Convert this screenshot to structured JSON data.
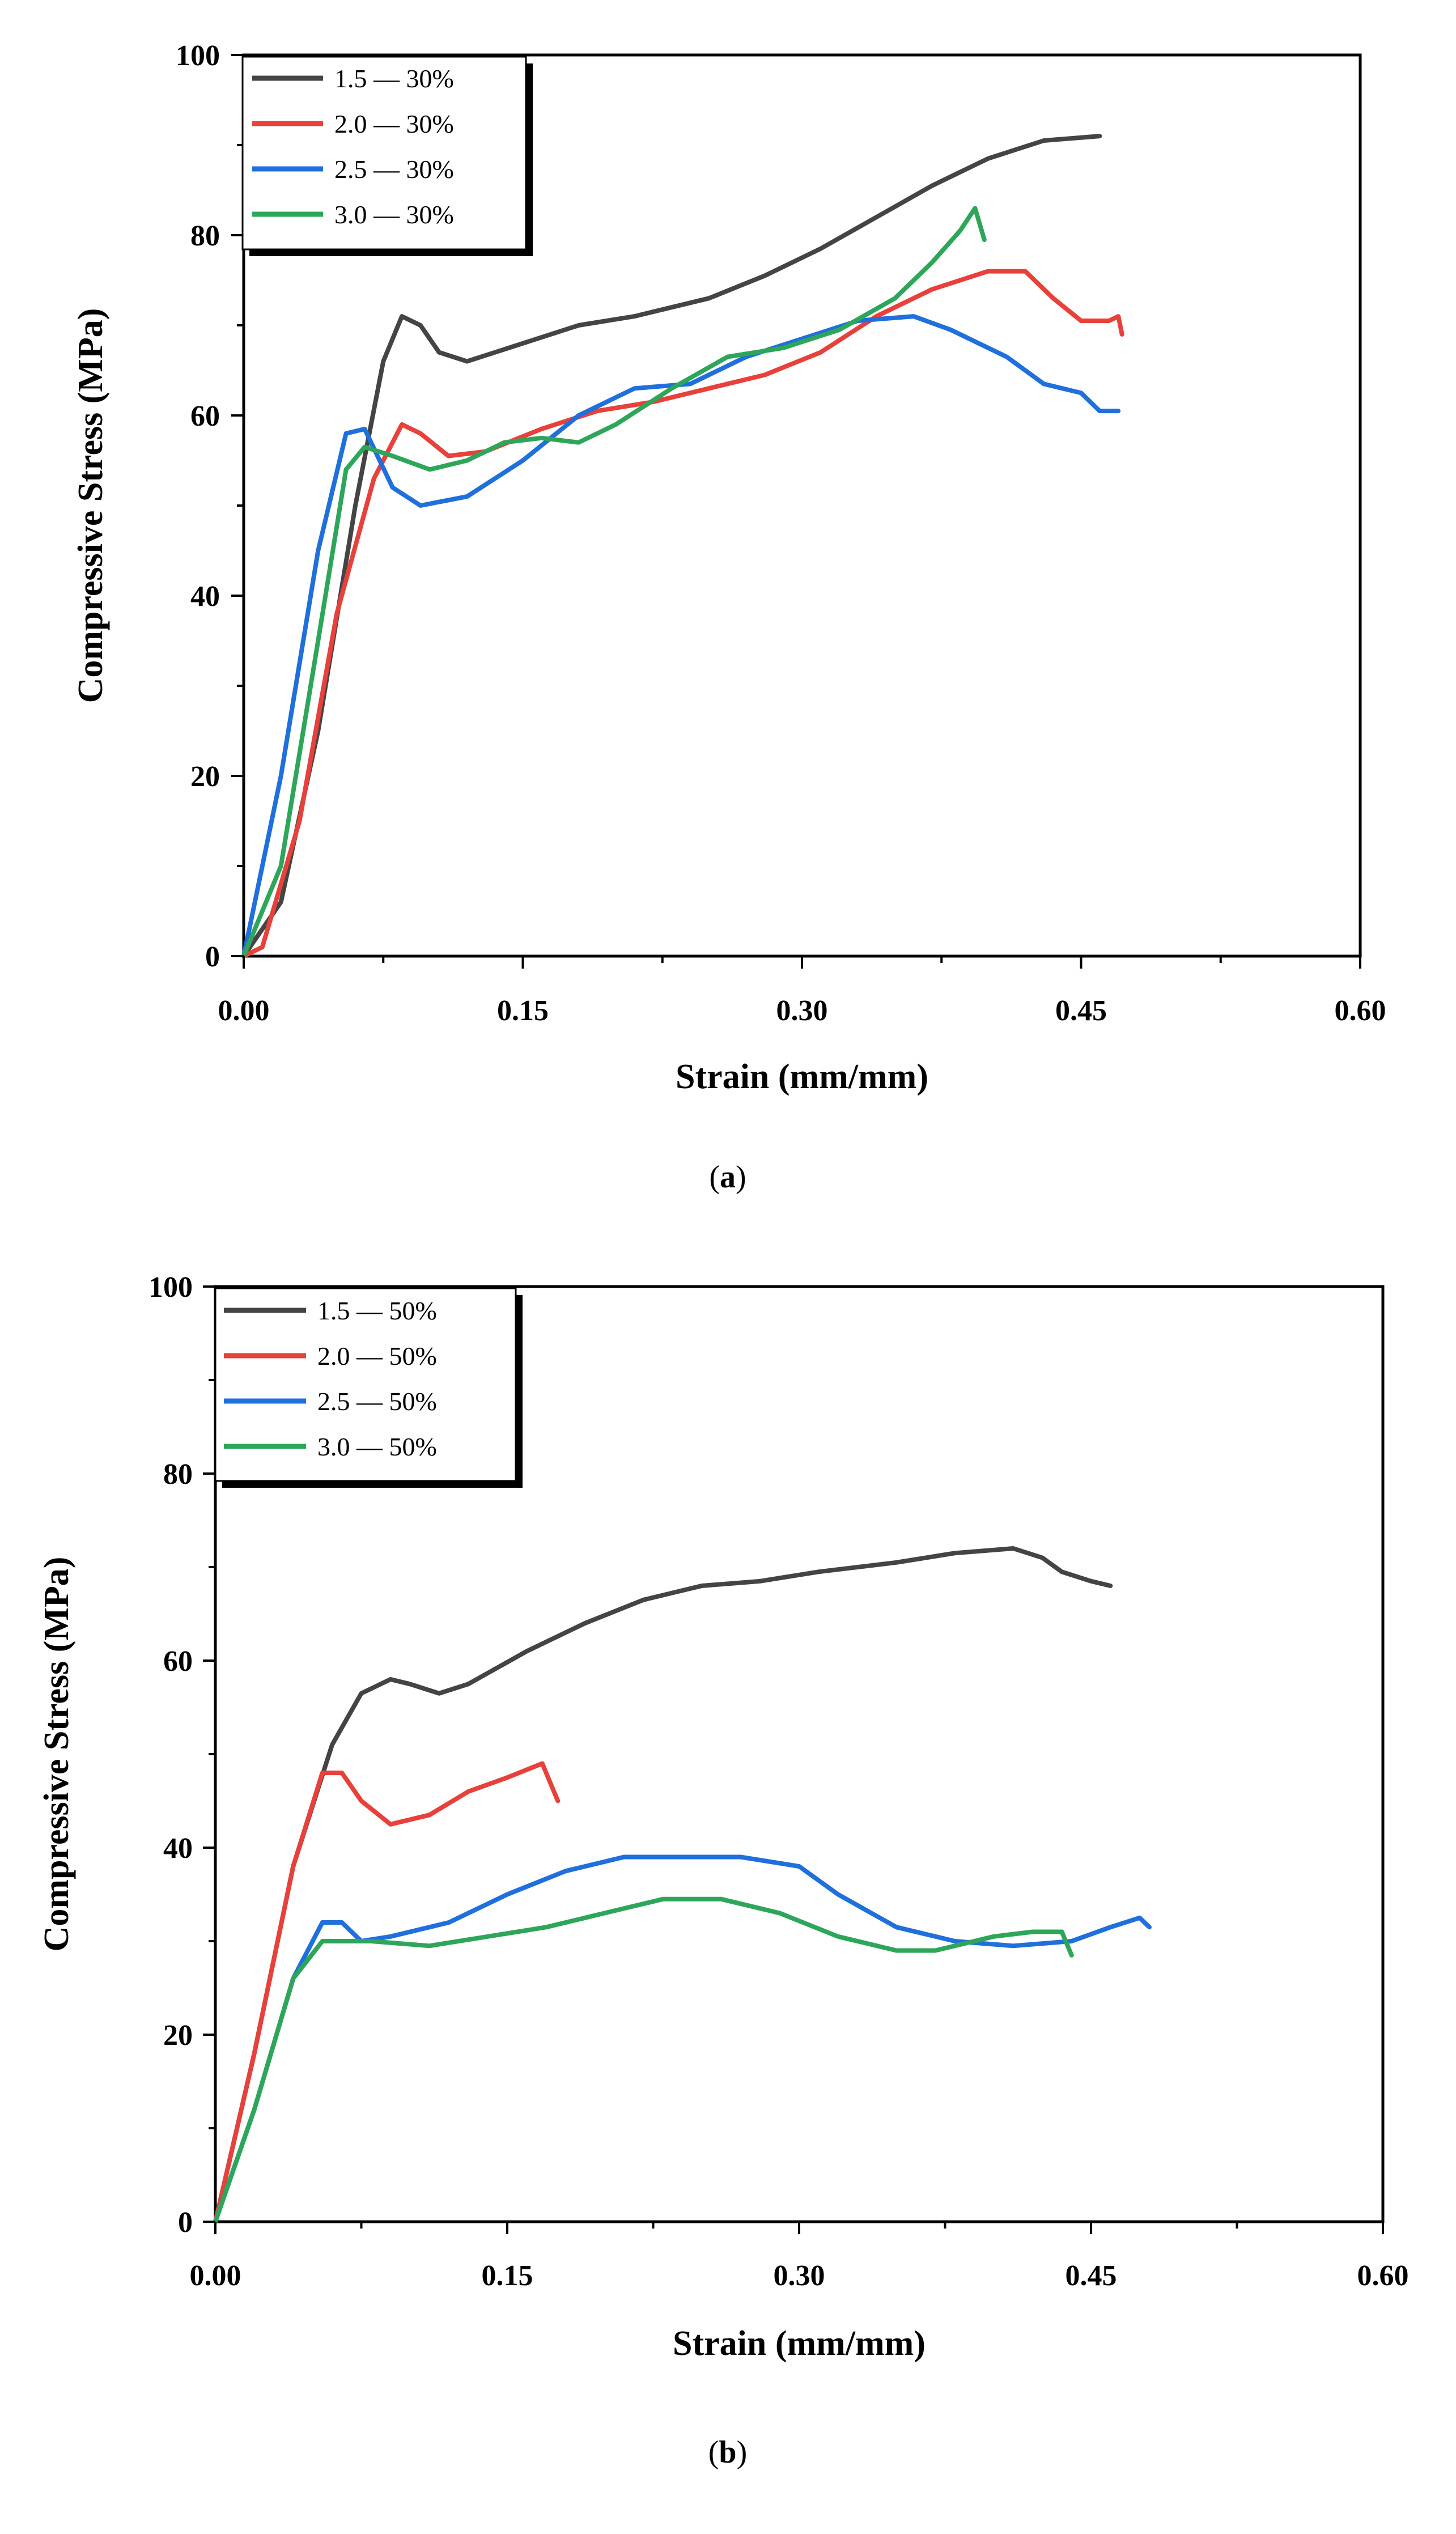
{
  "chart_data": [
    {
      "type": "line",
      "panel_label": "a",
      "xlabel": "Strain (mm/mm)",
      "ylabel": "Compressive Stress (MPa)",
      "xlim": [
        0,
        0.6
      ],
      "ylim": [
        0,
        100
      ],
      "x_ticks": [
        "0.00",
        "0.15",
        "0.30",
        "0.45",
        "0.60"
      ],
      "y_ticks": [
        "0",
        "20",
        "40",
        "60",
        "80",
        "100"
      ],
      "legend_position": "top-left",
      "series": [
        {
          "name": "1.5 — 30%",
          "color": "#444444",
          "points": [
            [
              0,
              0
            ],
            [
              0.02,
              6
            ],
            [
              0.04,
              25
            ],
            [
              0.06,
              50
            ],
            [
              0.075,
              66
            ],
            [
              0.085,
              71
            ],
            [
              0.095,
              70
            ],
            [
              0.105,
              67
            ],
            [
              0.12,
              66
            ],
            [
              0.15,
              68
            ],
            [
              0.18,
              70
            ],
            [
              0.21,
              71
            ],
            [
              0.25,
              73
            ],
            [
              0.28,
              75.5
            ],
            [
              0.31,
              78.5
            ],
            [
              0.34,
              82
            ],
            [
              0.37,
              85.5
            ],
            [
              0.4,
              88.5
            ],
            [
              0.43,
              90.5
            ],
            [
              0.46,
              91
            ]
          ]
        },
        {
          "name": "2.0 — 30%",
          "color": "#e8403a",
          "points": [
            [
              0,
              0
            ],
            [
              0.01,
              1
            ],
            [
              0.03,
              15
            ],
            [
              0.05,
              38
            ],
            [
              0.07,
              53
            ],
            [
              0.085,
              59
            ],
            [
              0.095,
              58
            ],
            [
              0.11,
              55.5
            ],
            [
              0.13,
              56
            ],
            [
              0.16,
              58.5
            ],
            [
              0.19,
              60.5
            ],
            [
              0.22,
              61.5
            ],
            [
              0.25,
              63
            ],
            [
              0.28,
              64.5
            ],
            [
              0.31,
              67
            ],
            [
              0.34,
              71
            ],
            [
              0.37,
              74
            ],
            [
              0.4,
              76
            ],
            [
              0.42,
              76
            ],
            [
              0.435,
              73
            ],
            [
              0.45,
              70.5
            ],
            [
              0.465,
              70.5
            ],
            [
              0.47,
              71
            ],
            [
              0.472,
              69
            ]
          ]
        },
        {
          "name": "2.5 — 30%",
          "color": "#1f6fdc",
          "points": [
            [
              0,
              0
            ],
            [
              0.02,
              20
            ],
            [
              0.04,
              45
            ],
            [
              0.055,
              58
            ],
            [
              0.065,
              58.5
            ],
            [
              0.08,
              52
            ],
            [
              0.095,
              50
            ],
            [
              0.12,
              51
            ],
            [
              0.15,
              55
            ],
            [
              0.18,
              60
            ],
            [
              0.21,
              63
            ],
            [
              0.24,
              63.5
            ],
            [
              0.27,
              66.5
            ],
            [
              0.3,
              68.5
            ],
            [
              0.33,
              70.5
            ],
            [
              0.36,
              71
            ],
            [
              0.38,
              69.5
            ],
            [
              0.41,
              66.5
            ],
            [
              0.43,
              63.5
            ],
            [
              0.45,
              62.5
            ],
            [
              0.46,
              60.5
            ],
            [
              0.47,
              60.5
            ]
          ]
        },
        {
          "name": "3.0 — 30%",
          "color": "#2ea65a",
          "points": [
            [
              0,
              0
            ],
            [
              0.02,
              10
            ],
            [
              0.04,
              35
            ],
            [
              0.055,
              54
            ],
            [
              0.065,
              56.5
            ],
            [
              0.08,
              55.5
            ],
            [
              0.1,
              54
            ],
            [
              0.12,
              55
            ],
            [
              0.14,
              57
            ],
            [
              0.16,
              57.5
            ],
            [
              0.18,
              57
            ],
            [
              0.2,
              59
            ],
            [
              0.23,
              63
            ],
            [
              0.26,
              66.5
            ],
            [
              0.29,
              67.5
            ],
            [
              0.32,
              69.5
            ],
            [
              0.35,
              73
            ],
            [
              0.37,
              77
            ],
            [
              0.385,
              80.5
            ],
            [
              0.393,
              83
            ],
            [
              0.398,
              79.5
            ]
          ]
        }
      ]
    },
    {
      "type": "line",
      "panel_label": "b",
      "xlabel": "Strain (mm/mm)",
      "ylabel": "Compressive Stress (MPa)",
      "xlim": [
        0,
        0.6
      ],
      "ylim": [
        0,
        100
      ],
      "x_ticks": [
        "0.00",
        "0.15",
        "0.30",
        "0.45",
        "0.60"
      ],
      "y_ticks": [
        "0",
        "20",
        "40",
        "60",
        "80",
        "100"
      ],
      "legend_position": "top-left",
      "series": [
        {
          "name": "1.5 — 50%",
          "color": "#444444",
          "points": [
            [
              0,
              0
            ],
            [
              0.02,
              18
            ],
            [
              0.04,
              38
            ],
            [
              0.06,
              51
            ],
            [
              0.075,
              56.5
            ],
            [
              0.09,
              58
            ],
            [
              0.1,
              57.5
            ],
            [
              0.115,
              56.5
            ],
            [
              0.13,
              57.5
            ],
            [
              0.16,
              61
            ],
            [
              0.19,
              64
            ],
            [
              0.22,
              66.5
            ],
            [
              0.25,
              68
            ],
            [
              0.28,
              68.5
            ],
            [
              0.31,
              69.5
            ],
            [
              0.35,
              70.5
            ],
            [
              0.38,
              71.5
            ],
            [
              0.41,
              72
            ],
            [
              0.425,
              71
            ],
            [
              0.435,
              69.5
            ],
            [
              0.45,
              68.5
            ],
            [
              0.46,
              68
            ]
          ]
        },
        {
          "name": "2.0 — 50%",
          "color": "#e8403a",
          "points": [
            [
              0,
              0
            ],
            [
              0.02,
              18
            ],
            [
              0.04,
              38
            ],
            [
              0.055,
              48
            ],
            [
              0.065,
              48
            ],
            [
              0.075,
              45
            ],
            [
              0.09,
              42.5
            ],
            [
              0.11,
              43.5
            ],
            [
              0.13,
              46
            ],
            [
              0.15,
              47.5
            ],
            [
              0.168,
              49
            ],
            [
              0.172,
              47
            ],
            [
              0.176,
              45
            ]
          ]
        },
        {
          "name": "2.5 — 50%",
          "color": "#1f6fdc",
          "points": [
            [
              0,
              0
            ],
            [
              0.02,
              12
            ],
            [
              0.04,
              26
            ],
            [
              0.055,
              32
            ],
            [
              0.065,
              32
            ],
            [
              0.075,
              30
            ],
            [
              0.09,
              30.5
            ],
            [
              0.12,
              32
            ],
            [
              0.15,
              35
            ],
            [
              0.18,
              37.5
            ],
            [
              0.21,
              39
            ],
            [
              0.24,
              39
            ],
            [
              0.27,
              39
            ],
            [
              0.3,
              38
            ],
            [
              0.32,
              35
            ],
            [
              0.35,
              31.5
            ],
            [
              0.38,
              30
            ],
            [
              0.41,
              29.5
            ],
            [
              0.44,
              30
            ],
            [
              0.46,
              31.5
            ],
            [
              0.475,
              32.5
            ],
            [
              0.48,
              31.5
            ]
          ]
        },
        {
          "name": "3.0 — 50%",
          "color": "#2ea65a",
          "points": [
            [
              0,
              0
            ],
            [
              0.02,
              12
            ],
            [
              0.04,
              26
            ],
            [
              0.055,
              30
            ],
            [
              0.08,
              30
            ],
            [
              0.11,
              29.5
            ],
            [
              0.14,
              30.5
            ],
            [
              0.17,
              31.5
            ],
            [
              0.2,
              33
            ],
            [
              0.23,
              34.5
            ],
            [
              0.26,
              34.5
            ],
            [
              0.29,
              33
            ],
            [
              0.32,
              30.5
            ],
            [
              0.35,
              29
            ],
            [
              0.37,
              29
            ],
            [
              0.4,
              30.5
            ],
            [
              0.42,
              31
            ],
            [
              0.435,
              31
            ],
            [
              0.44,
              28.5
            ]
          ]
        }
      ]
    }
  ]
}
